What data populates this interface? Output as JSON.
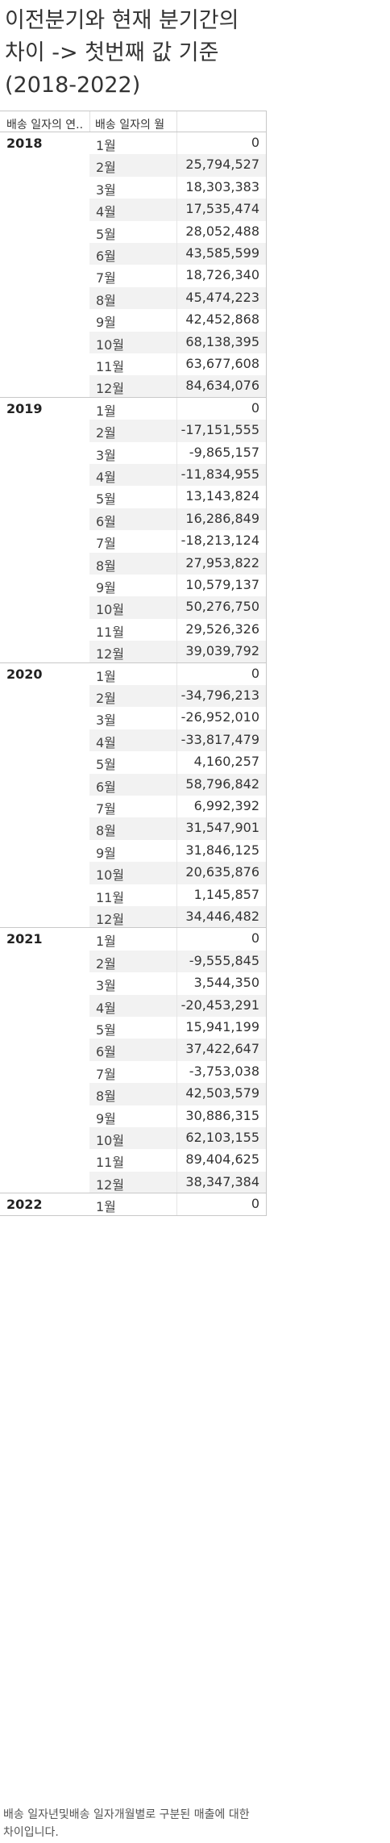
{
  "title_lines": [
    "이전분기와 현재 분기간의",
    "차이 -> 첫번째 값 기준",
    "(2018-2022)"
  ],
  "headers": {
    "col1": "배송 일자의 연..",
    "col2": "배송 일자의 월"
  },
  "groups": [
    {
      "year": "2018",
      "rows": [
        {
          "month": "1월",
          "value": "0"
        },
        {
          "month": "2월",
          "value": "25,794,527"
        },
        {
          "month": "3월",
          "value": "18,303,383"
        },
        {
          "month": "4월",
          "value": "17,535,474"
        },
        {
          "month": "5월",
          "value": "28,052,488"
        },
        {
          "month": "6월",
          "value": "43,585,599"
        },
        {
          "month": "7월",
          "value": "18,726,340"
        },
        {
          "month": "8월",
          "value": "45,474,223"
        },
        {
          "month": "9월",
          "value": "42,452,868"
        },
        {
          "month": "10월",
          "value": "68,138,395"
        },
        {
          "month": "11월",
          "value": "63,677,608"
        },
        {
          "month": "12월",
          "value": "84,634,076"
        }
      ]
    },
    {
      "year": "2019",
      "rows": [
        {
          "month": "1월",
          "value": "0"
        },
        {
          "month": "2월",
          "value": "-17,151,555"
        },
        {
          "month": "3월",
          "value": "-9,865,157"
        },
        {
          "month": "4월",
          "value": "-11,834,955"
        },
        {
          "month": "5월",
          "value": "13,143,824"
        },
        {
          "month": "6월",
          "value": "16,286,849"
        },
        {
          "month": "7월",
          "value": "-18,213,124"
        },
        {
          "month": "8월",
          "value": "27,953,822"
        },
        {
          "month": "9월",
          "value": "10,579,137"
        },
        {
          "month": "10월",
          "value": "50,276,750"
        },
        {
          "month": "11월",
          "value": "29,526,326"
        },
        {
          "month": "12월",
          "value": "39,039,792"
        }
      ]
    },
    {
      "year": "2020",
      "rows": [
        {
          "month": "1월",
          "value": "0"
        },
        {
          "month": "2월",
          "value": "-34,796,213"
        },
        {
          "month": "3월",
          "value": "-26,952,010"
        },
        {
          "month": "4월",
          "value": "-33,817,479"
        },
        {
          "month": "5월",
          "value": "4,160,257"
        },
        {
          "month": "6월",
          "value": "58,796,842"
        },
        {
          "month": "7월",
          "value": "6,992,392"
        },
        {
          "month": "8월",
          "value": "31,547,901"
        },
        {
          "month": "9월",
          "value": "31,846,125"
        },
        {
          "month": "10월",
          "value": "20,635,876"
        },
        {
          "month": "11월",
          "value": "1,145,857"
        },
        {
          "month": "12월",
          "value": "34,446,482"
        }
      ]
    },
    {
      "year": "2021",
      "rows": [
        {
          "month": "1월",
          "value": "0"
        },
        {
          "month": "2월",
          "value": "-9,555,845"
        },
        {
          "month": "3월",
          "value": "3,544,350"
        },
        {
          "month": "4월",
          "value": "-20,453,291"
        },
        {
          "month": "5월",
          "value": "15,941,199"
        },
        {
          "month": "6월",
          "value": "37,422,647"
        },
        {
          "month": "7월",
          "value": "-3,753,038"
        },
        {
          "month": "8월",
          "value": "42,503,579"
        },
        {
          "month": "9월",
          "value": "30,886,315"
        },
        {
          "month": "10월",
          "value": "62,103,155"
        },
        {
          "month": "11월",
          "value": "89,404,625"
        },
        {
          "month": "12월",
          "value": "38,347,384"
        }
      ]
    },
    {
      "year": "2022",
      "rows": [
        {
          "month": "1월",
          "value": "0"
        }
      ]
    }
  ],
  "footnote": "배송 일자년및배송 일자개월별로 구분된 매출에 대한 차이입니다."
}
